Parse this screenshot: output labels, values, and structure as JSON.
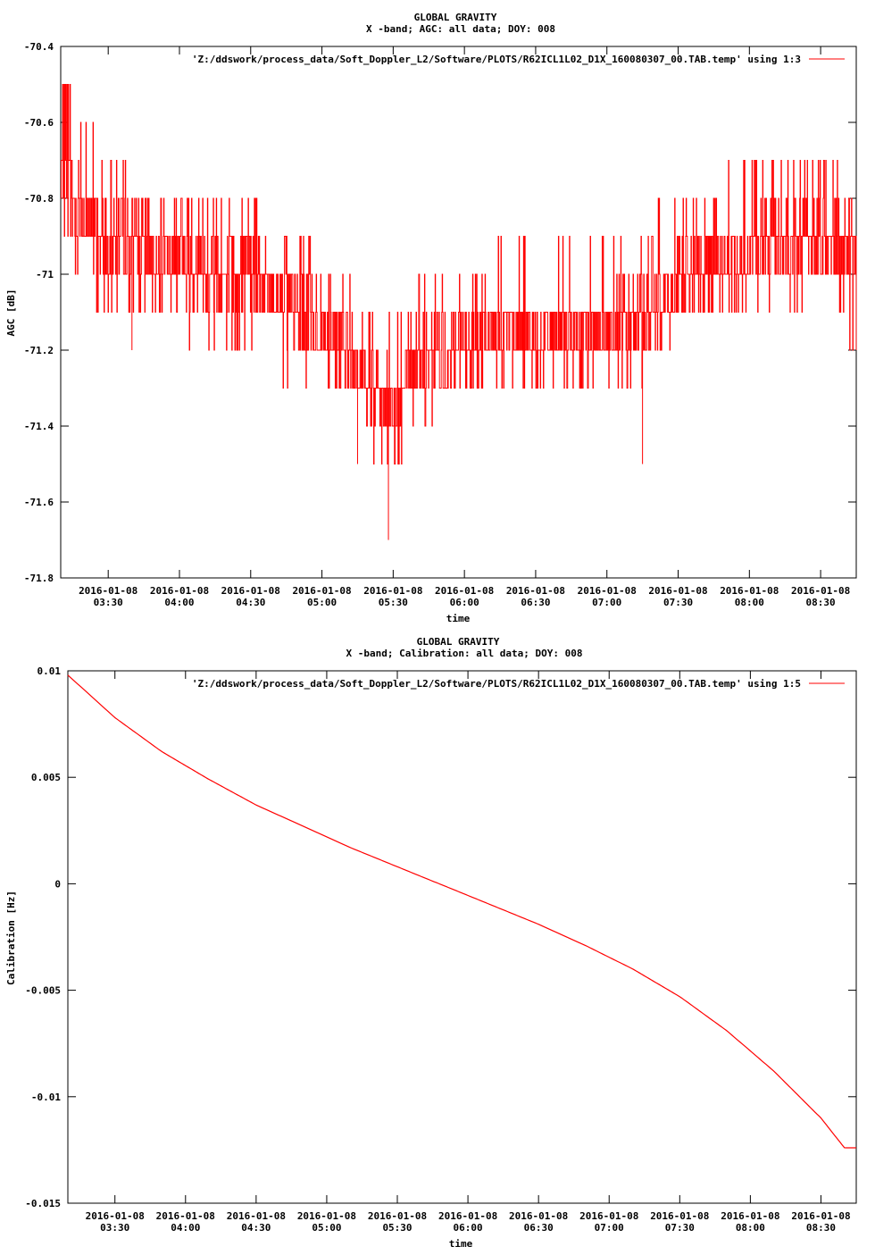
{
  "charts": [
    {
      "title": "GLOBAL GRAVITY",
      "subtitle": "X -band; AGC: all data; DOY: 008",
      "legend_label": "'Z:/ddswork/process_data/Soft_Doppler_L2/Software/PLOTS/R62ICL1L02_D1X_160080307_00.TAB.temp' using 1:3",
      "ylabel": "AGC [dB]",
      "xlabel": "time",
      "yticks": [
        "-70.4",
        "-70.6",
        "-70.8",
        "-71",
        "-71.2",
        "-71.4",
        "-71.6",
        "-71.8"
      ],
      "xticks_date": [
        "2016-01-08",
        "2016-01-08",
        "2016-01-08",
        "2016-01-08",
        "2016-01-08",
        "2016-01-08",
        "2016-01-08",
        "2016-01-08",
        "2016-01-08",
        "2016-01-08",
        "2016-01-08"
      ],
      "xticks_time": [
        "03:30",
        "04:00",
        "04:30",
        "05:00",
        "05:30",
        "06:00",
        "06:30",
        "07:00",
        "07:30",
        "08:00",
        "08:30"
      ]
    },
    {
      "title": "GLOBAL GRAVITY",
      "subtitle": "X -band; Calibration: all data; DOY: 008",
      "legend_label": "'Z:/ddswork/process_data/Soft_Doppler_L2/Software/PLOTS/R62ICL1L02_D1X_160080307_00.TAB.temp' using 1:5",
      "ylabel": "Calibration [Hz]",
      "xlabel": "time",
      "yticks": [
        "0.01",
        "0.005",
        "0",
        "-0.005",
        "-0.01",
        "-0.015"
      ],
      "xticks_date": [
        "2016-01-08",
        "2016-01-08",
        "2016-01-08",
        "2016-01-08",
        "2016-01-08",
        "2016-01-08",
        "2016-01-08",
        "2016-01-08",
        "2016-01-08",
        "2016-01-08",
        "2016-01-08"
      ],
      "xticks_time": [
        "03:30",
        "04:00",
        "04:30",
        "05:00",
        "05:30",
        "06:00",
        "06:30",
        "07:00",
        "07:30",
        "08:00",
        "08:30"
      ]
    }
  ],
  "chart_data": [
    {
      "type": "line",
      "title": "GLOBAL GRAVITY",
      "subtitle": "X -band; AGC: all data; DOY: 008",
      "xlabel": "time",
      "ylabel": "AGC [dB]",
      "xlim": [
        "2016-01-08 03:10",
        "2016-01-08 08:45"
      ],
      "ylim": [
        -71.8,
        -70.4
      ],
      "grid": false,
      "legend_position": "top-right",
      "color": "#ff0000",
      "series": [
        {
          "name": "'Z:/ddswork/process_data/Soft_Doppler_L2/Software/PLOTS/R62ICL1L02_D1X_160080307_00.TAB.temp' using 1:3",
          "x": [
            "03:10",
            "03:20",
            "03:30",
            "03:40",
            "03:50",
            "04:00",
            "04:10",
            "04:20",
            "04:30",
            "04:40",
            "04:50",
            "05:00",
            "05:10",
            "05:20",
            "05:30",
            "05:40",
            "05:50",
            "06:00",
            "06:10",
            "06:20",
            "06:30",
            "06:40",
            "06:50",
            "07:00",
            "07:10",
            "07:20",
            "07:30",
            "07:40",
            "07:50",
            "08:00",
            "08:10",
            "08:20",
            "08:30",
            "08:40",
            "08:45"
          ],
          "center": [
            -70.75,
            -70.85,
            -70.9,
            -70.92,
            -70.95,
            -70.98,
            -71.0,
            -71.0,
            -70.98,
            -71.05,
            -71.1,
            -71.15,
            -71.2,
            -71.3,
            -71.35,
            -71.25,
            -71.2,
            -71.2,
            -71.15,
            -71.15,
            -71.15,
            -71.15,
            -71.15,
            -71.15,
            -71.12,
            -71.1,
            -71.0,
            -71.0,
            -70.95,
            -70.95,
            -70.92,
            -70.9,
            -70.9,
            -70.92,
            -70.95
          ],
          "low": [
            -70.9,
            -71.0,
            -71.1,
            -71.1,
            -71.1,
            -71.15,
            -71.2,
            -71.2,
            -71.2,
            -71.25,
            -71.3,
            -71.3,
            -71.35,
            -71.45,
            -71.5,
            -71.4,
            -71.35,
            -71.3,
            -71.3,
            -71.3,
            -71.3,
            -71.3,
            -71.3,
            -71.3,
            -71.3,
            -71.25,
            -71.15,
            -71.15,
            -71.1,
            -71.1,
            -71.1,
            -71.1,
            -71.1,
            -71.15,
            -71.2
          ],
          "high": [
            -70.5,
            -70.6,
            -70.7,
            -70.75,
            -70.8,
            -70.85,
            -70.85,
            -70.85,
            -70.8,
            -70.85,
            -70.9,
            -71.0,
            -71.0,
            -71.1,
            -71.15,
            -71.05,
            -71.0,
            -71.0,
            -70.95,
            -70.95,
            -70.95,
            -70.95,
            -70.95,
            -70.95,
            -70.9,
            -70.85,
            -70.8,
            -70.8,
            -70.75,
            -70.75,
            -70.72,
            -70.7,
            -70.7,
            -70.75,
            -70.8
          ],
          "min_points": [
            [
              "03:40",
              -71.2
            ],
            [
              "05:28",
              -71.7
            ],
            [
              "05:15",
              -71.5
            ],
            [
              "07:15",
              -71.5
            ]
          ]
        }
      ]
    },
    {
      "type": "line",
      "title": "GLOBAL GRAVITY",
      "subtitle": "X -band; Calibration: all data; DOY: 008",
      "xlabel": "time",
      "ylabel": "Calibration [Hz]",
      "xlim": [
        "2016-01-08 03:10",
        "2016-01-08 08:45"
      ],
      "ylim": [
        -0.015,
        0.01
      ],
      "grid": false,
      "legend_position": "top-right",
      "color": "#ff0000",
      "series": [
        {
          "name": "'Z:/ddswork/process_data/Soft_Doppler_L2/Software/PLOTS/R62ICL1L02_D1X_160080307_00.TAB.temp' using 1:5",
          "x": [
            "03:10",
            "03:30",
            "03:50",
            "04:10",
            "04:30",
            "04:50",
            "05:10",
            "05:30",
            "05:50",
            "06:10",
            "06:30",
            "06:50",
            "07:10",
            "07:30",
            "07:50",
            "08:10",
            "08:30",
            "08:40",
            "08:45"
          ],
          "y": [
            0.0098,
            0.0078,
            0.0062,
            0.0049,
            0.0037,
            0.0027,
            0.0017,
            0.0008,
            -0.0001,
            -0.001,
            -0.0019,
            -0.0029,
            -0.004,
            -0.0053,
            -0.0069,
            -0.0088,
            -0.011,
            -0.0124,
            -0.0124
          ]
        }
      ]
    }
  ]
}
